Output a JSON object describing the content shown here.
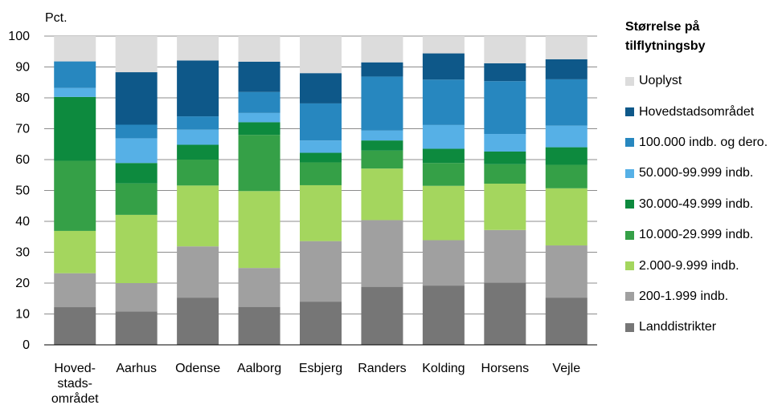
{
  "chart_data": {
    "type": "bar",
    "stacked": true,
    "ylabel": "Pct.",
    "ylim": [
      0,
      100
    ],
    "yticks": [
      0,
      10,
      20,
      30,
      40,
      50,
      60,
      70,
      80,
      90,
      100
    ],
    "grid": true,
    "legend_title": "Størrelse på tilflytningsby",
    "legend_position": "right",
    "categories": [
      [
        "Hoved-",
        "stads-",
        "området"
      ],
      [
        "Aarhus"
      ],
      [
        "Odense"
      ],
      [
        "Aalborg"
      ],
      [
        "Esbjerg"
      ],
      [
        "Randers"
      ],
      [
        "Kolding"
      ],
      [
        "Horsens"
      ],
      [
        "Vejle"
      ]
    ],
    "series": [
      {
        "name": "Landdistrikter",
        "color": "#767676",
        "values": [
          12.2,
          10.8,
          15.3,
          12.3,
          14.0,
          18.8,
          19.2,
          20.1,
          15.3
        ]
      },
      {
        "name": "200-1.999 indb.",
        "color": "#a0a0a0",
        "values": [
          11.0,
          9.2,
          16.6,
          12.6,
          19.6,
          21.6,
          14.7,
          17.1,
          16.9
        ]
      },
      {
        "name": "2.000-9.999 indb.",
        "color": "#a4d65e",
        "values": [
          13.7,
          22.1,
          19.7,
          24.9,
          18.1,
          16.7,
          17.6,
          15.0,
          18.5
        ]
      },
      {
        "name": "10.000-29.999 indb.",
        "color": "#35a047",
        "values": [
          22.7,
          10.2,
          8.4,
          18.2,
          7.4,
          5.8,
          7.4,
          6.3,
          7.6
        ]
      },
      {
        "name": "30.000-49.999 indb.",
        "color": "#0d8a3e",
        "values": [
          20.7,
          6.6,
          4.8,
          4.1,
          3.1,
          3.3,
          4.6,
          4.1,
          5.7
        ]
      },
      {
        "name": "50.000-99.999 indb.",
        "color": "#56b0e6",
        "values": [
          2.9,
          8.0,
          4.9,
          3.0,
          4.0,
          3.2,
          7.7,
          5.7,
          7.0
        ]
      },
      {
        "name": "100.000 indb. og dero.",
        "color": "#2787bf",
        "values": [
          8.6,
          4.4,
          4.3,
          6.8,
          12.0,
          17.5,
          14.7,
          17.1,
          15.0
        ]
      },
      {
        "name": "Hovedstadsområdet",
        "color": "#0e5889",
        "values": [
          0,
          17.0,
          18.1,
          9.8,
          9.8,
          4.6,
          8.5,
          5.8,
          6.5
        ]
      },
      {
        "name": "Uoplyst",
        "color": "#dcdcdc",
        "values": [
          8.2,
          11.7,
          7.9,
          8.3,
          12.0,
          8.5,
          5.6,
          8.8,
          7.5
        ]
      }
    ]
  }
}
